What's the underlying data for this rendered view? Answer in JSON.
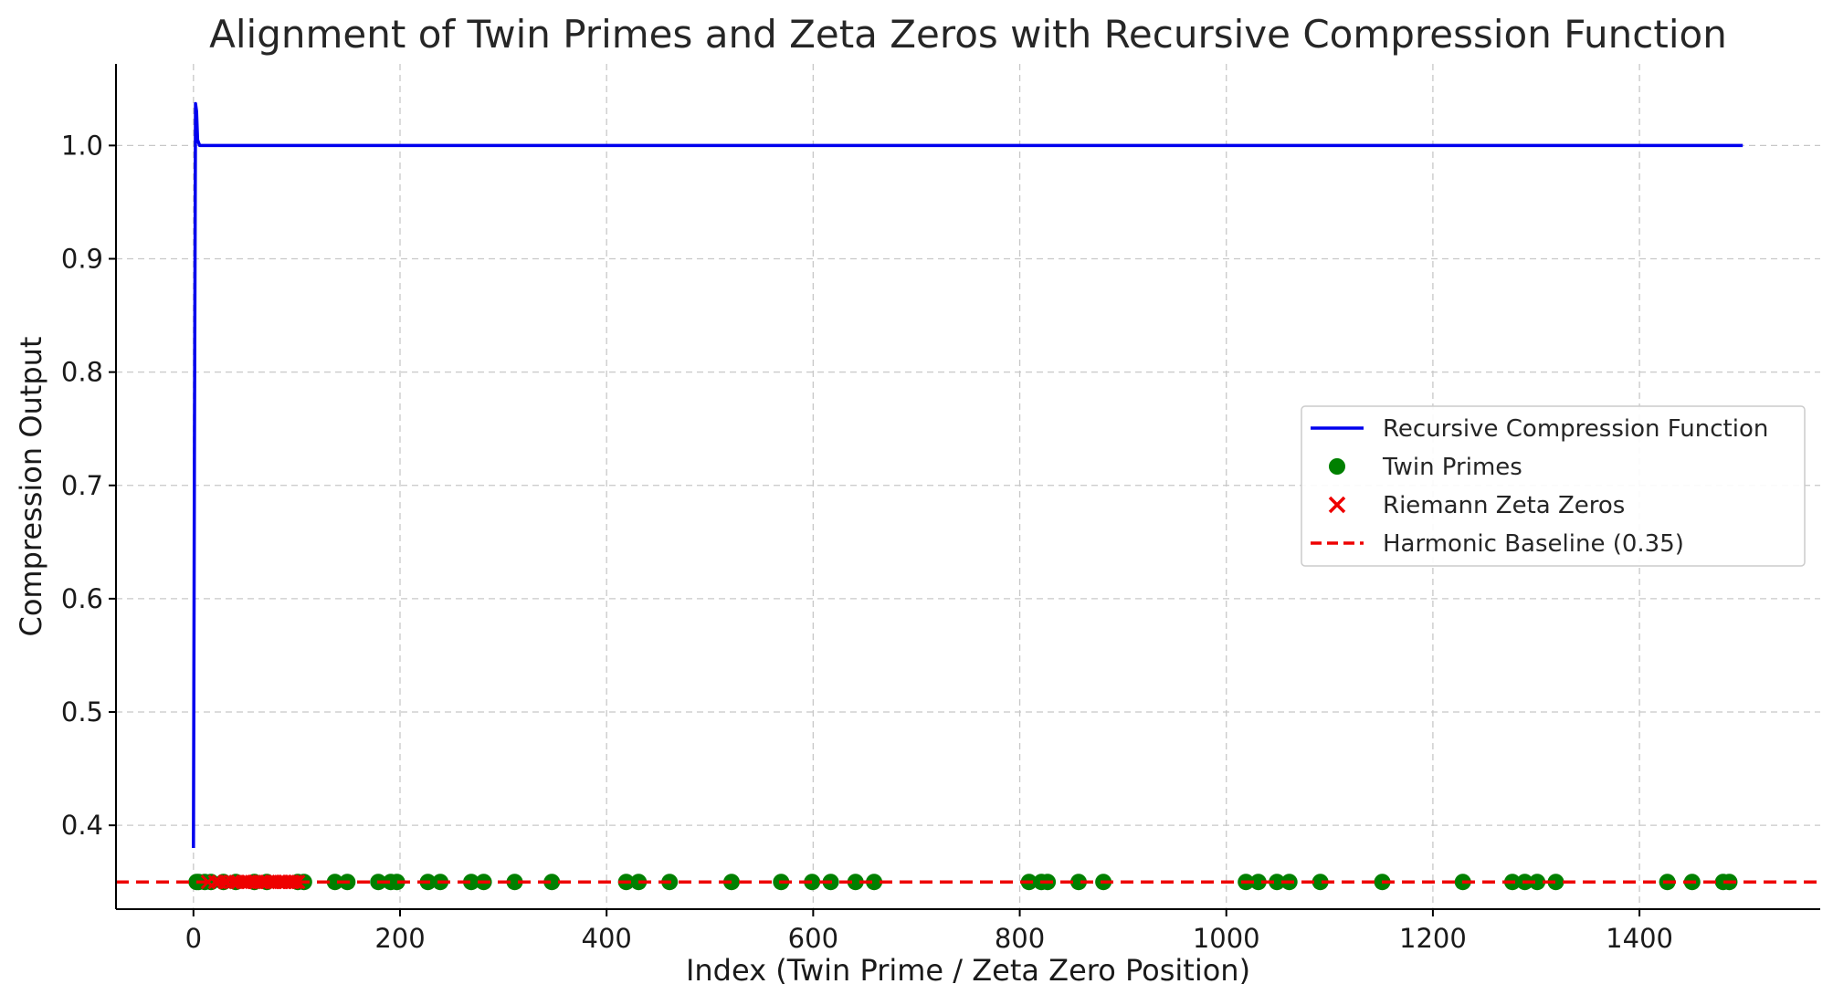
{
  "chart_data": {
    "type": "line",
    "title": "Alignment of Twin Primes and Zeta Zeros with Recursive Compression Function",
    "xlabel": "Index (Twin Prime / Zeta Zero Position)",
    "ylabel": "Compression Output",
    "xlim": [
      -75,
      1575
    ],
    "ylim": [
      0.326,
      1.072
    ],
    "xticks": [
      0,
      200,
      400,
      600,
      800,
      1000,
      1200,
      1400
    ],
    "yticks": [
      0.4,
      0.5,
      0.6,
      0.7,
      0.8,
      0.9,
      1.0
    ],
    "xtick_labels": [
      "0",
      "200",
      "400",
      "600",
      "800",
      "1000",
      "1200",
      "1400"
    ],
    "ytick_labels": [
      "0.4",
      "0.5",
      "0.6",
      "0.7",
      "0.8",
      "0.9",
      "1.0"
    ],
    "grid": true,
    "legend_position": "center-right",
    "series": [
      {
        "name": "Recursive Compression Function",
        "kind": "line",
        "color": "#0000ee",
        "x": [
          0,
          1,
          2,
          3,
          4,
          6,
          10,
          20,
          50,
          100,
          500,
          1000,
          1500
        ],
        "y": [
          0.38,
          0.75,
          1.037,
          1.03,
          1.005,
          1.0,
          1.0,
          1.0,
          1.0,
          1.0,
          1.0,
          1.0,
          1.0
        ]
      },
      {
        "name": "Twin Primes",
        "kind": "scatter",
        "marker": "circle",
        "color": "#008000",
        "x": [
          3,
          5,
          11,
          17,
          29,
          41,
          59,
          71,
          101,
          107,
          137,
          149,
          179,
          191,
          197,
          227,
          239,
          269,
          281,
          311,
          347,
          419,
          431,
          461,
          521,
          569,
          599,
          617,
          641,
          659,
          809,
          821,
          827,
          857,
          881,
          1019,
          1031,
          1049,
          1061,
          1091,
          1151,
          1229,
          1277,
          1289,
          1301,
          1319,
          1427,
          1451,
          1481,
          1487
        ],
        "y": [
          0.35,
          0.35,
          0.35,
          0.35,
          0.35,
          0.35,
          0.35,
          0.35,
          0.35,
          0.35,
          0.35,
          0.35,
          0.35,
          0.35,
          0.35,
          0.35,
          0.35,
          0.35,
          0.35,
          0.35,
          0.35,
          0.35,
          0.35,
          0.35,
          0.35,
          0.35,
          0.35,
          0.35,
          0.35,
          0.35,
          0.35,
          0.35,
          0.35,
          0.35,
          0.35,
          0.35,
          0.35,
          0.35,
          0.35,
          0.35,
          0.35,
          0.35,
          0.35,
          0.35,
          0.35,
          0.35,
          0.35,
          0.35,
          0.35,
          0.35
        ]
      },
      {
        "name": "Riemann Zeta Zeros",
        "kind": "scatter",
        "marker": "x",
        "color": "#ee0000",
        "x": [
          14.13,
          21.02,
          25.01,
          30.42,
          32.94,
          37.59,
          40.92,
          43.33,
          48.01,
          49.77,
          52.97,
          56.45,
          59.35,
          60.83,
          65.11,
          67.08,
          69.55,
          72.07,
          75.7,
          77.14,
          79.34,
          82.91,
          84.74,
          87.43,
          88.81,
          92.49,
          94.65,
          95.87,
          98.83,
          101.32
        ],
        "y": [
          0.35,
          0.35,
          0.35,
          0.35,
          0.35,
          0.35,
          0.35,
          0.35,
          0.35,
          0.35,
          0.35,
          0.35,
          0.35,
          0.35,
          0.35,
          0.35,
          0.35,
          0.35,
          0.35,
          0.35,
          0.35,
          0.35,
          0.35,
          0.35,
          0.35,
          0.35,
          0.35,
          0.35,
          0.35,
          0.35
        ]
      },
      {
        "name": "Harmonic Baseline (0.35)",
        "kind": "hline",
        "style": "dashed",
        "color": "#ee0000",
        "y": 0.35
      }
    ]
  }
}
